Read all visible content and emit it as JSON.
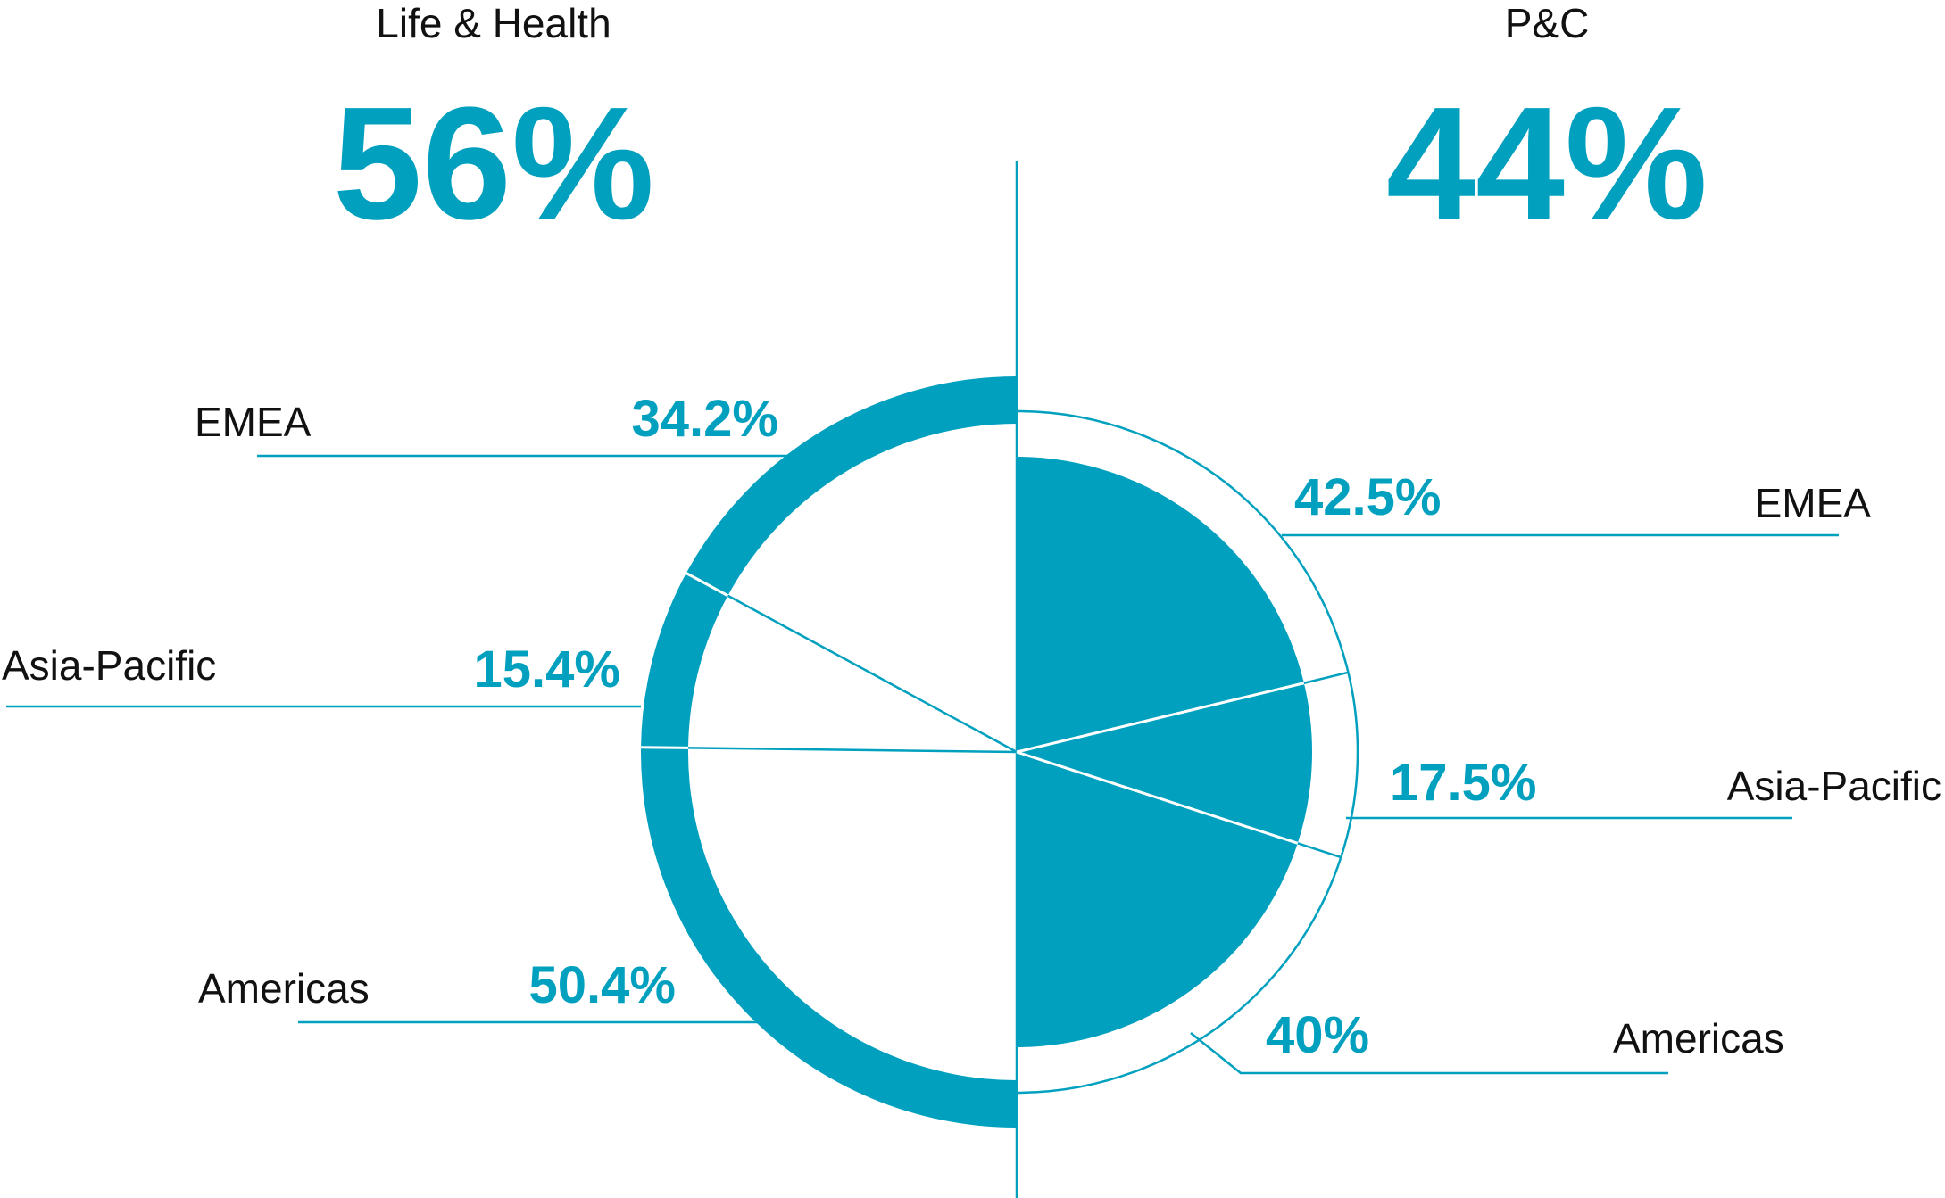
{
  "chart_data": [
    {
      "type": "pie",
      "side": "left",
      "title": "Life & Health",
      "total": 56,
      "total_label": "56%",
      "categories": [
        "EMEA",
        "Asia-Pacific",
        "Americas"
      ],
      "values": [
        34.2,
        15.4,
        50.4
      ],
      "value_labels": [
        "34.2%",
        "15.4%",
        "50.4%"
      ],
      "color": "#00a0be"
    },
    {
      "type": "pie",
      "side": "right",
      "title": "P&C",
      "total": 44,
      "total_label": "44%",
      "categories": [
        "EMEA",
        "Asia-Pacific",
        "Americas"
      ],
      "values": [
        42.5,
        17.5,
        40
      ],
      "value_labels": [
        "42.5%",
        "17.5%",
        "40%"
      ],
      "color": "#00a0be"
    }
  ]
}
